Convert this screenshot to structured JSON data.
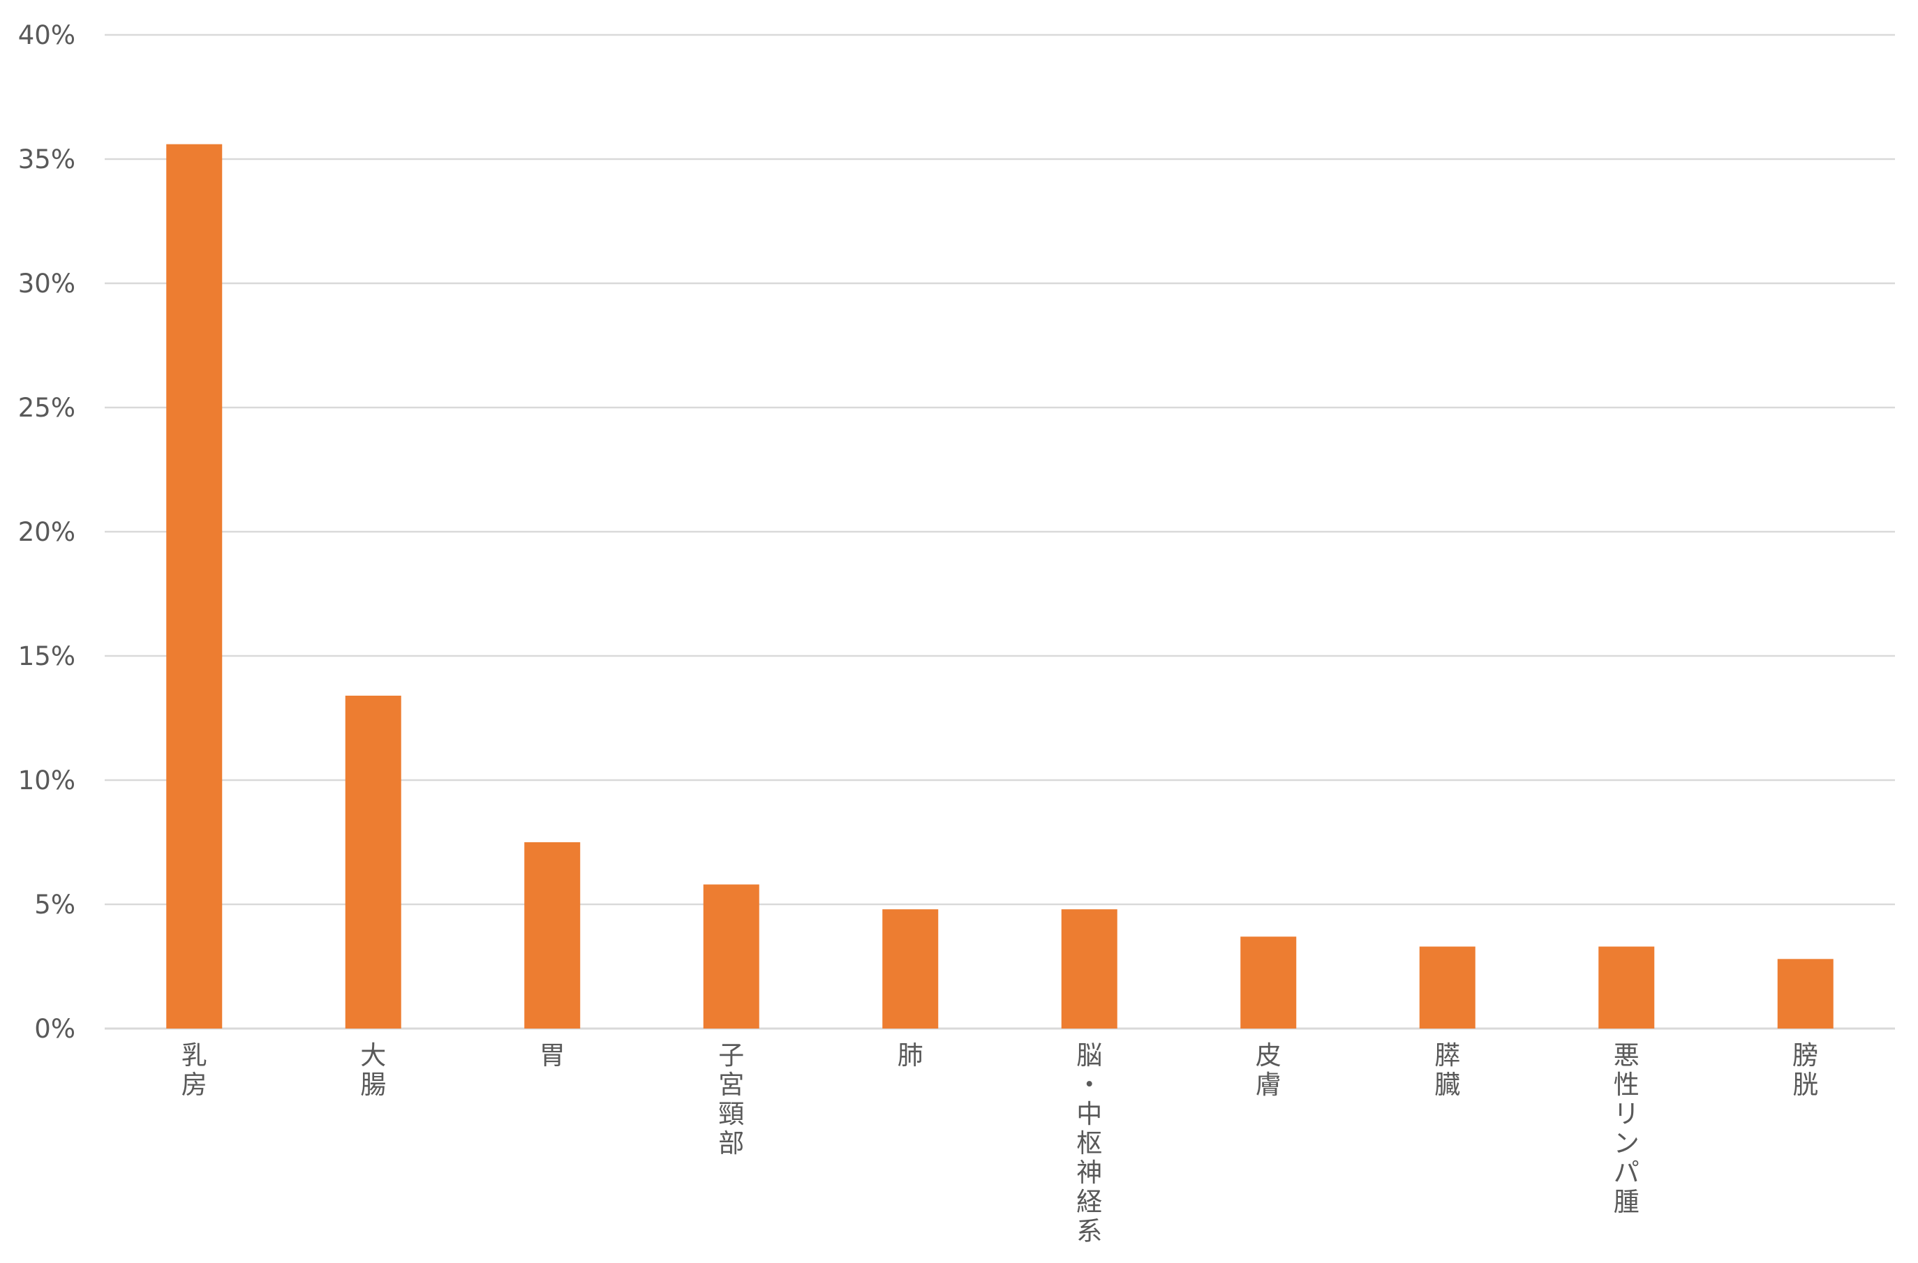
{
  "chart_data": {
    "type": "bar",
    "categories": [
      "乳房",
      "大腸",
      "胃",
      "子宮頸部",
      "肺",
      "脳・中枢神経系",
      "皮膚",
      "膵臓",
      "悪性リンパ腫",
      "膀胱"
    ],
    "values": [
      35.6,
      13.4,
      7.5,
      5.8,
      4.8,
      4.8,
      3.7,
      3.3,
      3.3,
      2.8
    ],
    "ylim": [
      0,
      40
    ],
    "yticks": [
      0,
      5,
      10,
      15,
      20,
      25,
      30,
      35,
      40
    ],
    "ytick_labels": [
      "0%",
      "5%",
      "10%",
      "15%",
      "20%",
      "25%",
      "30%",
      "35%",
      "40%"
    ],
    "title": "",
    "xlabel": "",
    "ylabel": "",
    "grid": true,
    "label_orientation": "vertical",
    "colors": {
      "bar": "#ED7D31",
      "grid": "#D9D9D9",
      "text": "#595959"
    }
  }
}
